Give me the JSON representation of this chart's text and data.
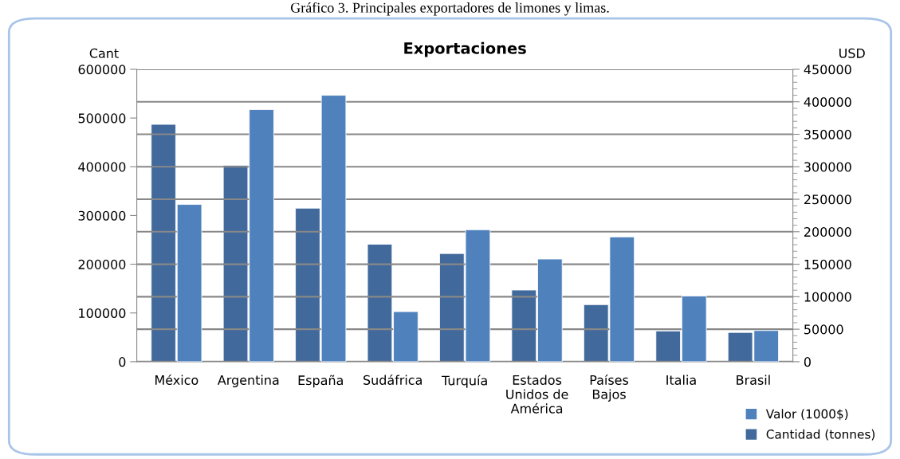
{
  "chart_data": {
    "type": "bar",
    "title": "Exportaciones",
    "ylabel": "Cant",
    "y2label": "USD",
    "annotations": [
      "Gráfico 3. Principales exportadores de limones y limas."
    ],
    "categories": [
      "México",
      "Argentina",
      "España",
      "Sudáfrica",
      "Turquía",
      "Estados\nUnidos de\nAmérica",
      "Países\nBajos",
      "Italia",
      "Brasil"
    ],
    "series": [
      {
        "name": "Cantidad (tonnes)",
        "color": "#41699c",
        "values": [
          487000,
          403000,
          315000,
          241000,
          222000,
          147000,
          117000,
          63000,
          60000
        ]
      },
      {
        "name": "Valor (1000$)",
        "color": "#4f81bd",
        "axis": "y2",
        "values": [
          242000,
          388000,
          410000,
          77000,
          203000,
          158000,
          192000,
          101000,
          48000
        ]
      }
    ],
    "ylim": [
      0,
      600000
    ],
    "yticks": [
      0,
      100000,
      200000,
      300000,
      400000,
      500000,
      600000
    ],
    "y2lim": [
      0,
      450000
    ],
    "y2ticks": [
      0,
      50000,
      100000,
      150000,
      200000,
      250000,
      300000,
      350000,
      400000,
      450000
    ],
    "grid": "y2",
    "legend": "bottom right"
  }
}
